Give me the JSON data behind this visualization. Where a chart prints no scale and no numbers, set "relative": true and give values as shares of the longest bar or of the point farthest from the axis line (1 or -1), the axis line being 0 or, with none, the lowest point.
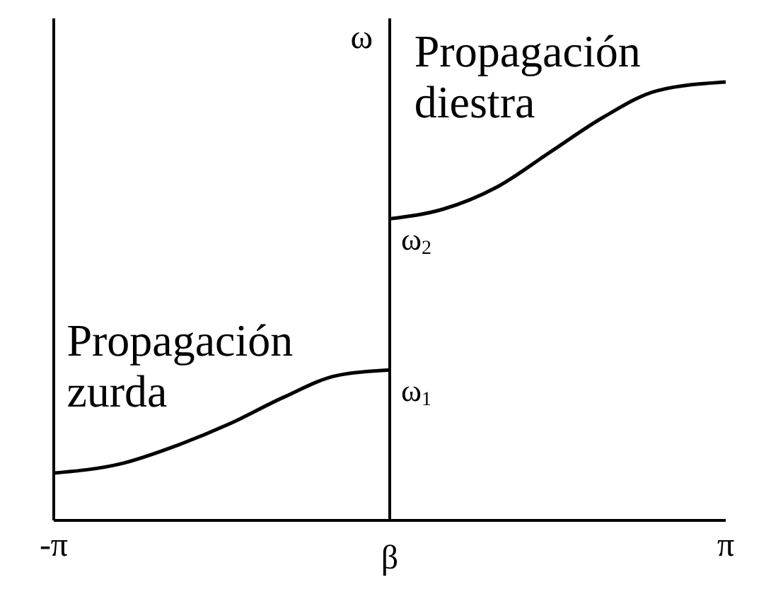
{
  "chart_data": {
    "type": "line",
    "relative": true,
    "xlabel": "β",
    "ylabel": "ω",
    "xlim": [
      -3.14159,
      3.14159
    ],
    "xticks": [
      {
        "value": -3.14159,
        "label": "-π"
      },
      {
        "value": 3.14159,
        "label": "π"
      }
    ],
    "series": [
      {
        "color": "#000000",
        "x": [
          -3.14159,
          -2.5,
          -2,
          -1.5,
          -1,
          -0.5,
          0
        ],
        "values": [
          0.108,
          0.13,
          0.17,
          0.22,
          0.28,
          0.33,
          0.343
        ]
      },
      {
        "color": "#000000",
        "x": [
          0,
          0.5,
          1,
          1.5,
          2,
          2.5,
          3.14159
        ],
        "values": [
          0.688,
          0.71,
          0.76,
          0.84,
          0.92,
          0.98,
          1.0
        ]
      }
    ],
    "ref_lines": [
      {
        "axis": "x",
        "value": 0,
        "color": "#000000"
      }
    ],
    "annotations": [
      {
        "text": "ω$_{1}$",
        "x": 0,
        "y": 0.343
      },
      {
        "text": "ω$_{2}$",
        "x": 0,
        "y": 0.688
      },
      "Propagación zurda",
      "Propagación diestra"
    ],
    "grid": false,
    "legend": false,
    "marker": "none",
    "line_style": "solid"
  }
}
